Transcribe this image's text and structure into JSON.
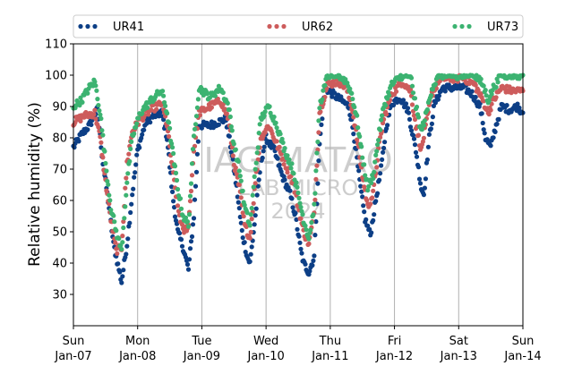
{
  "chart_data": {
    "type": "scatter",
    "title": "",
    "xlabel": "",
    "ylabel": "Relative humidity (%)",
    "ylim": [
      20,
      110
    ],
    "yticks": [
      30,
      40,
      50,
      60,
      70,
      80,
      90,
      100,
      110
    ],
    "xlim": [
      "2024-01-07",
      "2024-01-14"
    ],
    "xticks": [
      {
        "day": "Sun",
        "date": "Jan-07"
      },
      {
        "day": "Mon",
        "date": "Jan-08"
      },
      {
        "day": "Tue",
        "date": "Jan-09"
      },
      {
        "day": "Wed",
        "date": "Jan-10"
      },
      {
        "day": "Thu",
        "date": "Jan-11"
      },
      {
        "day": "Fri",
        "date": "Jan-12"
      },
      {
        "day": "Sat",
        "date": "Jan-13"
      },
      {
        "day": "Sun",
        "date": "Jan-14"
      }
    ],
    "grid": "vertical",
    "legend_position": "top",
    "watermark": [
      "IAG-MATAO",
      "LAB MICRO",
      "2024"
    ],
    "series": [
      {
        "name": "UR41",
        "color": "#0d3f86",
        "points": [
          [
            "2024-01-07 00:00",
            77
          ],
          [
            "2024-01-07 03:00",
            81
          ],
          [
            "2024-01-07 06:00",
            84
          ],
          [
            "2024-01-07 09:00",
            89
          ],
          [
            "2024-01-07 11:00",
            72
          ],
          [
            "2024-01-07 13:00",
            60
          ],
          [
            "2024-01-07 15:00",
            46
          ],
          [
            "2024-01-07 17:00",
            38
          ],
          [
            "2024-01-07 18:00",
            34
          ],
          [
            "2024-01-07 20:00",
            46
          ],
          [
            "2024-01-07 22:00",
            62
          ],
          [
            "2024-01-08 00:00",
            76
          ],
          [
            "2024-01-08 03:00",
            85
          ],
          [
            "2024-01-08 06:00",
            87
          ],
          [
            "2024-01-08 09:00",
            88
          ],
          [
            "2024-01-08 11:00",
            80
          ],
          [
            "2024-01-08 13:00",
            62
          ],
          [
            "2024-01-08 15:00",
            50
          ],
          [
            "2024-01-08 17:00",
            45
          ],
          [
            "2024-01-08 19:00",
            38
          ],
          [
            "2024-01-08 21:00",
            55
          ],
          [
            "2024-01-08 23:00",
            84
          ],
          [
            "2024-01-09 03:00",
            84
          ],
          [
            "2024-01-09 06:00",
            85
          ],
          [
            "2024-01-09 09:00",
            86
          ],
          [
            "2024-01-09 11:00",
            76
          ],
          [
            "2024-01-09 13:00",
            64
          ],
          [
            "2024-01-09 15:00",
            50
          ],
          [
            "2024-01-09 17:00",
            42
          ],
          [
            "2024-01-09 18:00",
            40
          ],
          [
            "2024-01-09 20:00",
            55
          ],
          [
            "2024-01-09 22:00",
            72
          ],
          [
            "2024-01-10 00:00",
            80
          ],
          [
            "2024-01-10 03:00",
            76
          ],
          [
            "2024-01-10 06:00",
            68
          ],
          [
            "2024-01-10 09:00",
            62
          ],
          [
            "2024-01-10 11:00",
            55
          ],
          [
            "2024-01-10 13:00",
            44
          ],
          [
            "2024-01-10 14:00",
            40
          ],
          [
            "2024-01-10 16:00",
            37
          ],
          [
            "2024-01-10 18:00",
            42
          ],
          [
            "2024-01-10 20:00",
            78
          ],
          [
            "2024-01-10 22:00",
            96
          ],
          [
            "2024-01-11 01:00",
            94
          ],
          [
            "2024-01-11 04:00",
            92
          ],
          [
            "2024-01-11 07:00",
            90
          ],
          [
            "2024-01-11 09:00",
            80
          ],
          [
            "2024-01-11 11:00",
            66
          ],
          [
            "2024-01-11 13:00",
            54
          ],
          [
            "2024-01-11 15:00",
            49
          ],
          [
            "2024-01-11 17:00",
            60
          ],
          [
            "2024-01-11 19:00",
            70
          ],
          [
            "2024-01-11 21:00",
            84
          ],
          [
            "2024-01-11 23:00",
            91
          ],
          [
            "2024-01-12 02:00",
            93
          ],
          [
            "2024-01-12 05:00",
            89
          ],
          [
            "2024-01-12 08:00",
            76
          ],
          [
            "2024-01-12 10:00",
            64
          ],
          [
            "2024-01-12 11:00",
            62
          ],
          [
            "2024-01-12 13:00",
            80
          ],
          [
            "2024-01-12 15:00",
            91
          ],
          [
            "2024-01-12 18:00",
            96
          ],
          [
            "2024-01-12 22:00",
            96
          ],
          [
            "2024-01-13 02:00",
            96
          ],
          [
            "2024-01-13 05:00",
            94
          ],
          [
            "2024-01-13 08:00",
            90
          ],
          [
            "2024-01-13 10:00",
            80
          ],
          [
            "2024-01-13 12:00",
            77
          ],
          [
            "2024-01-13 14:00",
            84
          ],
          [
            "2024-01-13 16:00",
            90
          ],
          [
            "2024-01-13 19:00",
            89
          ],
          [
            "2024-01-13 22:00",
            90
          ],
          [
            "2024-01-14 00:00",
            88
          ]
        ]
      },
      {
        "name": "UR62",
        "color": "#cd5c5c",
        "points": [
          [
            "2024-01-07 00:00",
            85
          ],
          [
            "2024-01-07 04:00",
            87
          ],
          [
            "2024-01-07 08:00",
            88
          ],
          [
            "2024-01-07 10:00",
            80
          ],
          [
            "2024-01-07 12:00",
            66
          ],
          [
            "2024-01-07 14:00",
            54
          ],
          [
            "2024-01-07 16:00",
            44
          ],
          [
            "2024-01-07 18:00",
            45
          ],
          [
            "2024-01-07 20:00",
            72
          ],
          [
            "2024-01-07 22:00",
            82
          ],
          [
            "2024-01-08 01:00",
            86
          ],
          [
            "2024-01-08 05:00",
            89
          ],
          [
            "2024-01-08 09:00",
            91
          ],
          [
            "2024-01-08 11:00",
            84
          ],
          [
            "2024-01-08 13:00",
            70
          ],
          [
            "2024-01-08 15:00",
            58
          ],
          [
            "2024-01-08 17:00",
            50
          ],
          [
            "2024-01-08 19:00",
            52
          ],
          [
            "2024-01-08 21:00",
            76
          ],
          [
            "2024-01-08 23:00",
            88
          ],
          [
            "2024-01-09 03:00",
            90
          ],
          [
            "2024-01-09 07:00",
            92
          ],
          [
            "2024-01-09 10:00",
            86
          ],
          [
            "2024-01-09 12:00",
            72
          ],
          [
            "2024-01-09 14:00",
            64
          ],
          [
            "2024-01-09 16:00",
            52
          ],
          [
            "2024-01-09 18:00",
            48
          ],
          [
            "2024-01-09 20:00",
            66
          ],
          [
            "2024-01-09 22:00",
            80
          ],
          [
            "2024-01-10 01:00",
            84
          ],
          [
            "2024-01-10 04:00",
            78
          ],
          [
            "2024-01-10 07:00",
            72
          ],
          [
            "2024-01-10 10:00",
            66
          ],
          [
            "2024-01-10 12:00",
            58
          ],
          [
            "2024-01-10 14:00",
            50
          ],
          [
            "2024-01-10 16:00",
            46
          ],
          [
            "2024-01-10 18:00",
            56
          ],
          [
            "2024-01-10 20:00",
            88
          ],
          [
            "2024-01-10 23:00",
            97
          ],
          [
            "2024-01-11 03:00",
            98
          ],
          [
            "2024-01-11 06:00",
            96
          ],
          [
            "2024-01-11 08:00",
            90
          ],
          [
            "2024-01-11 10:00",
            80
          ],
          [
            "2024-01-11 12:00",
            68
          ],
          [
            "2024-01-11 14:00",
            58
          ],
          [
            "2024-01-11 16:00",
            62
          ],
          [
            "2024-01-11 18:00",
            76
          ],
          [
            "2024-01-11 20:00",
            86
          ],
          [
            "2024-01-11 23:00",
            94
          ],
          [
            "2024-01-12 03:00",
            98
          ],
          [
            "2024-01-12 06:00",
            95
          ],
          [
            "2024-01-12 08:00",
            84
          ],
          [
            "2024-01-12 10:00",
            76
          ],
          [
            "2024-01-12 12:00",
            85
          ],
          [
            "2024-01-12 14:00",
            94
          ],
          [
            "2024-01-12 17:00",
            99
          ],
          [
            "2024-01-12 21:00",
            99
          ],
          [
            "2024-01-13 02:00",
            99
          ],
          [
            "2024-01-13 06:00",
            97
          ],
          [
            "2024-01-13 09:00",
            92
          ],
          [
            "2024-01-13 11:00",
            88
          ],
          [
            "2024-01-13 13:00",
            92
          ],
          [
            "2024-01-13 16:00",
            96
          ],
          [
            "2024-01-13 20:00",
            95
          ],
          [
            "2024-01-14 00:00",
            95
          ]
        ]
      },
      {
        "name": "UR73",
        "color": "#3cb371",
        "points": [
          [
            "2024-01-07 00:00",
            90
          ],
          [
            "2024-01-07 03:00",
            92
          ],
          [
            "2024-01-07 06:00",
            96
          ],
          [
            "2024-01-07 08:00",
            98
          ],
          [
            "2024-01-07 10:00",
            88
          ],
          [
            "2024-01-07 12:00",
            72
          ],
          [
            "2024-01-07 14:00",
            58
          ],
          [
            "2024-01-07 16:00",
            50
          ],
          [
            "2024-01-07 18:00",
            44
          ],
          [
            "2024-01-07 20:00",
            66
          ],
          [
            "2024-01-07 22:00",
            80
          ],
          [
            "2024-01-08 01:00",
            88
          ],
          [
            "2024-01-08 05:00",
            92
          ],
          [
            "2024-01-08 09:00",
            95
          ],
          [
            "2024-01-08 11:00",
            88
          ],
          [
            "2024-01-08 13:00",
            76
          ],
          [
            "2024-01-08 15:00",
            64
          ],
          [
            "2024-01-08 17:00",
            55
          ],
          [
            "2024-01-08 19:00",
            52
          ],
          [
            "2024-01-08 21:00",
            80
          ],
          [
            "2024-01-08 23:00",
            96
          ],
          [
            "2024-01-09 03:00",
            93
          ],
          [
            "2024-01-09 07:00",
            96
          ],
          [
            "2024-01-09 10:00",
            90
          ],
          [
            "2024-01-09 12:00",
            78
          ],
          [
            "2024-01-09 14:00",
            70
          ],
          [
            "2024-01-09 16:00",
            58
          ],
          [
            "2024-01-09 18:00",
            52
          ],
          [
            "2024-01-09 20:00",
            70
          ],
          [
            "2024-01-09 22:00",
            86
          ],
          [
            "2024-01-10 01:00",
            90
          ],
          [
            "2024-01-10 04:00",
            84
          ],
          [
            "2024-01-10 07:00",
            76
          ],
          [
            "2024-01-10 10:00",
            70
          ],
          [
            "2024-01-10 12:00",
            62
          ],
          [
            "2024-01-10 14:00",
            54
          ],
          [
            "2024-01-10 16:00",
            48
          ],
          [
            "2024-01-10 18:00",
            58
          ],
          [
            "2024-01-10 20:00",
            90
          ],
          [
            "2024-01-10 23:00",
            100
          ],
          [
            "2024-01-11 03:00",
            100
          ],
          [
            "2024-01-11 06:00",
            98
          ],
          [
            "2024-01-11 08:00",
            94
          ],
          [
            "2024-01-11 10:00",
            86
          ],
          [
            "2024-01-11 12:00",
            74
          ],
          [
            "2024-01-11 14:00",
            64
          ],
          [
            "2024-01-11 16:00",
            68
          ],
          [
            "2024-01-11 18:00",
            80
          ],
          [
            "2024-01-11 20:00",
            90
          ],
          [
            "2024-01-11 23:00",
            97
          ],
          [
            "2024-01-12 03:00",
            100
          ],
          [
            "2024-01-12 06:00",
            100
          ],
          [
            "2024-01-12 08:00",
            90
          ],
          [
            "2024-01-12 10:00",
            82
          ],
          [
            "2024-01-12 12:00",
            88
          ],
          [
            "2024-01-12 14:00",
            96
          ],
          [
            "2024-01-12 17:00",
            100
          ],
          [
            "2024-01-12 21:00",
            100
          ],
          [
            "2024-01-13 02:00",
            100
          ],
          [
            "2024-01-13 06:00",
            100
          ],
          [
            "2024-01-13 09:00",
            97
          ],
          [
            "2024-01-13 11:00",
            92
          ],
          [
            "2024-01-13 13:00",
            96
          ],
          [
            "2024-01-13 16:00",
            100
          ],
          [
            "2024-01-13 20:00",
            100
          ],
          [
            "2024-01-14 00:00",
            100
          ]
        ]
      }
    ]
  }
}
